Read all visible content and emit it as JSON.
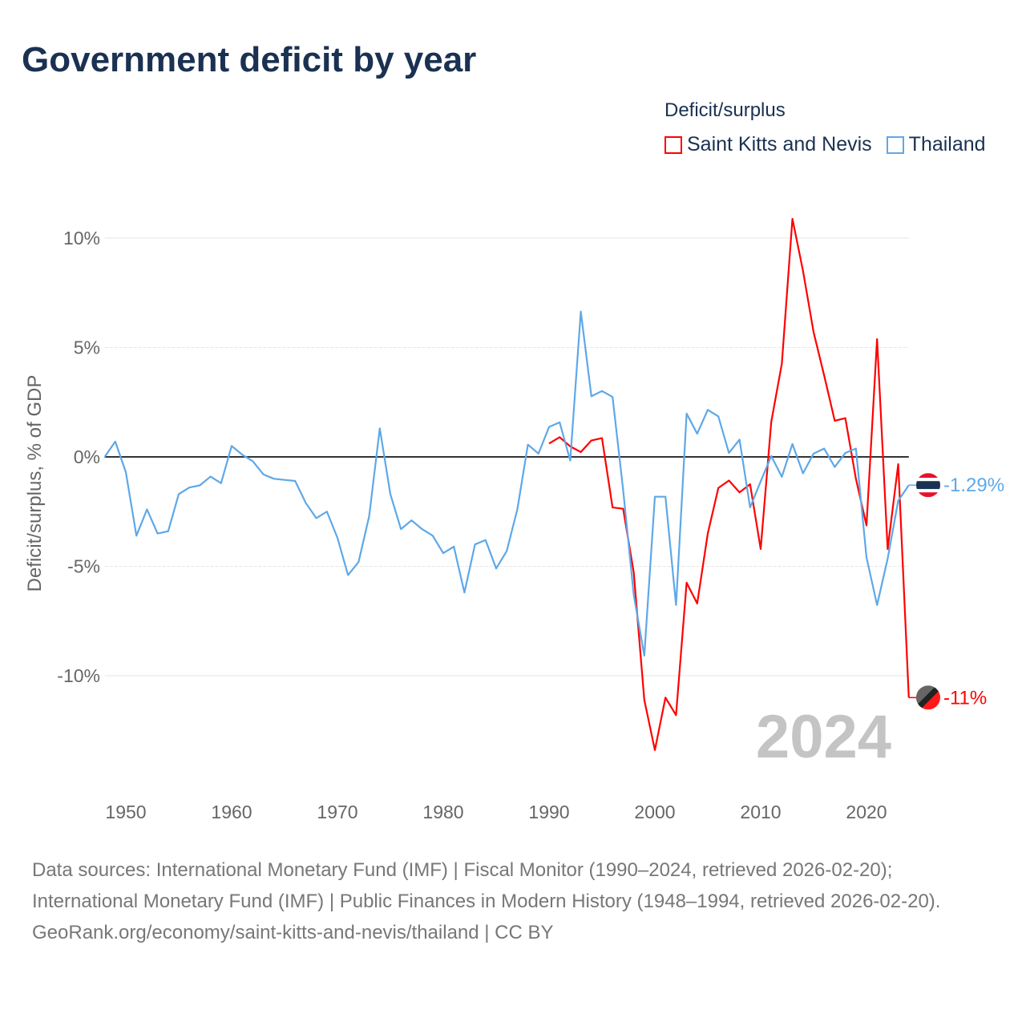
{
  "title": "Government deficit by year",
  "legend": {
    "title": "Deficit/surplus",
    "items": [
      {
        "label": "Saint Kitts and Nevis",
        "color": "#ff0000"
      },
      {
        "label": "Thailand",
        "color": "#5ea8e8"
      }
    ]
  },
  "chart_data": {
    "type": "line",
    "title": "Government deficit by year",
    "xlabel": "",
    "ylabel": "Deficit/surplus, % of GDP",
    "xlim": [
      1948,
      2024
    ],
    "ylim": [
      -14,
      11
    ],
    "x_ticks": [
      "1950",
      "1960",
      "1970",
      "1980",
      "1990",
      "2000",
      "2010",
      "2020"
    ],
    "y_ticks": [
      {
        "value": 10,
        "label": "10%"
      },
      {
        "value": 5,
        "label": "5%"
      },
      {
        "value": 0,
        "label": "0%"
      },
      {
        "value": -5,
        "label": "-5%"
      },
      {
        "value": -10,
        "label": "-10%"
      }
    ],
    "year_watermark": "2024",
    "series": [
      {
        "name": "Saint Kitts and Nevis",
        "color": "#ff0000",
        "start_year": 1990,
        "end_label": "-11%",
        "values": [
          0.61,
          0.9,
          0.48,
          0.22,
          0.75,
          0.86,
          -2.31,
          -2.37,
          -5.27,
          -11.1,
          -13.4,
          -11.0,
          -11.8,
          -5.75,
          -6.7,
          -3.5,
          -1.42,
          -1.08,
          -1.62,
          -1.25,
          -4.21,
          1.6,
          4.26,
          10.88,
          8.5,
          5.7,
          3.72,
          1.65,
          1.77,
          -1.0,
          -3.13,
          5.38,
          -4.21,
          -0.33,
          -11.0
        ]
      },
      {
        "name": "Thailand",
        "color": "#5ea8e8",
        "start_year": 1948,
        "end_label": "-1.29%",
        "values": [
          0.0,
          0.7,
          -0.7,
          -3.6,
          -2.4,
          -3.5,
          -3.4,
          -1.7,
          -1.4,
          -1.3,
          -0.9,
          -1.2,
          0.5,
          0.1,
          -0.2,
          -0.8,
          -1.0,
          -1.05,
          -1.1,
          -2.1,
          -2.8,
          -2.5,
          -3.7,
          -5.4,
          -4.8,
          -2.7,
          1.3,
          -1.7,
          -3.3,
          -2.9,
          -3.3,
          -3.6,
          -4.4,
          -4.1,
          -6.2,
          -4.0,
          -3.8,
          -5.1,
          -4.3,
          -2.4,
          0.56,
          0.15,
          1.37,
          1.58,
          -0.17,
          6.64,
          2.77,
          3.01,
          2.74,
          -1.5,
          -6.3,
          -9.08,
          -1.82,
          -1.82,
          -6.77,
          1.98,
          1.06,
          2.15,
          1.85,
          0.18,
          0.79,
          -2.31,
          -1.12,
          0.04,
          -0.91,
          0.59,
          -0.75,
          0.15,
          0.38,
          -0.46,
          0.18,
          0.38,
          -4.59,
          -6.77,
          -4.65,
          -2.0,
          -1.29
        ]
      }
    ]
  },
  "footer": {
    "sources": "Data sources: International Monetary Fund (IMF) | Fiscal Monitor (1990–2024, retrieved 2026-02-20); International Monetary Fund (IMF) | Public Finances in Modern History (1948–1994, retrieved 2026-02-20).",
    "credit": "GeoRank.org/economy/saint-kitts-and-nevis/thailand | CC BY"
  }
}
